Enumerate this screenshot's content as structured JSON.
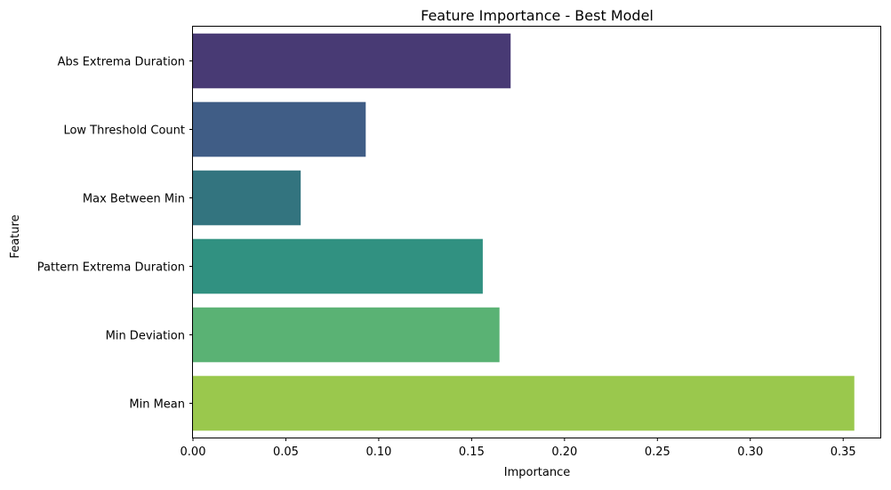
{
  "chart_data": {
    "type": "bar",
    "orientation": "horizontal",
    "title": "Feature Importance - Best Model",
    "xlabel": "Importance",
    "ylabel": "Feature",
    "categories": [
      "Abs Extrema Duration",
      "Low Threshold Count",
      "Max Between Min",
      "Pattern Extrema Duration",
      "Min Deviation",
      "Min Mean"
    ],
    "values": [
      0.171,
      0.093,
      0.058,
      0.156,
      0.165,
      0.356
    ],
    "colors": [
      "#483a74",
      "#405d86",
      "#33747f",
      "#319181",
      "#5ab274",
      "#9ac84d"
    ],
    "xlim": [
      0,
      0.37
    ],
    "xticks": [
      0.0,
      0.05,
      0.1,
      0.15,
      0.2,
      0.25,
      0.3,
      0.35
    ],
    "xtick_labels": [
      "0.00",
      "0.05",
      "0.10",
      "0.15",
      "0.20",
      "0.25",
      "0.30",
      "0.35"
    ],
    "grid": false,
    "legend": "none"
  }
}
